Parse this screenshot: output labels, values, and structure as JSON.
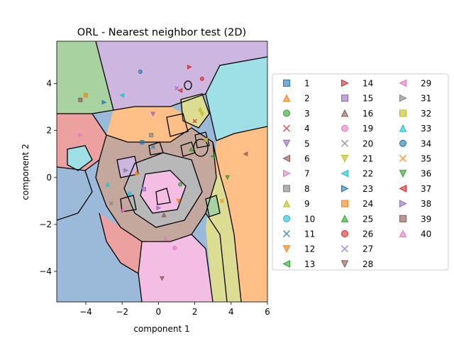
{
  "chart_data": {
    "type": "scatter",
    "title": "ORL - Nearest neighbor test (2D)",
    "xlabel": "component 1",
    "ylabel": "component 2",
    "xlim": [
      -5.6,
      6.0
    ],
    "ylim": [
      -5.3,
      5.8
    ],
    "xticks": [
      "−4",
      "−2",
      "0",
      "2",
      "4",
      "6"
    ],
    "xtick_values": [
      -4,
      -2,
      0,
      2,
      4,
      6
    ],
    "yticks": [
      "−4",
      "−2",
      "0",
      "2",
      "4"
    ],
    "ytick_values": [
      -4,
      -2,
      0,
      2,
      4
    ],
    "grid": false,
    "legend_position": "right",
    "legend_columns": 3,
    "background": "decision regions of a nearest-neighbor classifier, colored by class, with black boundaries",
    "series": [
      {
        "name": "1",
        "marker": "square",
        "color": "#1f77b4",
        "points": [
          [
            -0.9,
            1.5
          ]
        ]
      },
      {
        "name": "2",
        "marker": "triangle-up",
        "color": "#ff7f0e",
        "points": [
          [
            -1.2,
            0.2
          ]
        ]
      },
      {
        "name": "3",
        "marker": "circle",
        "color": "#2ca02c",
        "points": [
          [
            1.2,
            -0.3
          ]
        ]
      },
      {
        "name": "4",
        "marker": "x",
        "color": "#d62728",
        "points": [
          [
            2.0,
            2.4
          ]
        ]
      },
      {
        "name": "5",
        "marker": "triangle-down",
        "color": "#9467bd",
        "points": [
          [
            -0.3,
            2.7
          ]
        ]
      },
      {
        "name": "6",
        "marker": "triangle-left",
        "color": "#8c564b",
        "points": [
          [
            4.8,
            1.0
          ]
        ]
      },
      {
        "name": "7",
        "marker": "triangle-right",
        "color": "#e377c2",
        "points": [
          [
            -4.3,
            1.8
          ]
        ]
      },
      {
        "name": "8",
        "marker": "square",
        "color": "#7f7f7f",
        "points": [
          [
            -0.4,
            1.8
          ]
        ]
      },
      {
        "name": "9",
        "marker": "triangle-up",
        "color": "#bcbd22",
        "points": [
          [
            2.3,
            2.9
          ]
        ]
      },
      {
        "name": "10",
        "marker": "circle",
        "color": "#17becf",
        "points": [
          [
            -1.6,
            -0.7
          ]
        ]
      },
      {
        "name": "11",
        "marker": "x",
        "color": "#1f77b4",
        "points": [
          [
            -0.3,
            1.3
          ]
        ]
      },
      {
        "name": "12",
        "marker": "triangle-down",
        "color": "#ff7f0e",
        "points": [
          [
            1.1,
            -1.0
          ]
        ]
      },
      {
        "name": "13",
        "marker": "triangle-left",
        "color": "#2ca02c",
        "points": [
          [
            3.0,
            0.9
          ]
        ]
      },
      {
        "name": "14",
        "marker": "triangle-right",
        "color": "#d62728",
        "points": [
          [
            1.7,
            4.7
          ]
        ]
      },
      {
        "name": "15",
        "marker": "square",
        "color": "#9467bd",
        "points": [
          [
            -0.8,
            -0.5
          ]
        ]
      },
      {
        "name": "16",
        "marker": "triangle-up",
        "color": "#8c564b",
        "points": [
          [
            0.3,
            -1.6
          ]
        ]
      },
      {
        "name": "19",
        "marker": "circle",
        "color": "#e377c2",
        "points": [
          [
            0.9,
            -3.0
          ]
        ]
      },
      {
        "name": "20",
        "marker": "x",
        "color": "#7f7f7f",
        "points": [
          [
            -2.6,
            -1.1
          ]
        ]
      },
      {
        "name": "21",
        "marker": "triangle-down",
        "color": "#bcbd22",
        "points": [
          [
            2.4,
            2.7
          ]
        ]
      },
      {
        "name": "22",
        "marker": "triangle-left",
        "color": "#17becf",
        "points": [
          [
            -2.0,
            3.5
          ]
        ]
      },
      {
        "name": "23",
        "marker": "triangle-right",
        "color": "#1f77b4",
        "points": [
          [
            -3.0,
            3.2
          ]
        ]
      },
      {
        "name": "24",
        "marker": "square",
        "color": "#ff7f0e",
        "points": [
          [
            -4.0,
            3.5
          ]
        ]
      },
      {
        "name": "25",
        "marker": "triangle-up",
        "color": "#2ca02c",
        "points": [
          [
            1.8,
            1.2
          ]
        ]
      },
      {
        "name": "26",
        "marker": "circle",
        "color": "#d62728",
        "points": [
          [
            2.4,
            4.2
          ]
        ]
      },
      {
        "name": "27",
        "marker": "x",
        "color": "#9467bd",
        "points": [
          [
            1.0,
            3.8
          ]
        ]
      },
      {
        "name": "28",
        "marker": "triangle-down",
        "color": "#8c564b",
        "points": [
          [
            0.2,
            -4.3
          ]
        ]
      },
      {
        "name": "29",
        "marker": "triangle-left",
        "color": "#e377c2",
        "points": [
          [
            -2.0,
            -1.4
          ]
        ]
      },
      {
        "name": "31",
        "marker": "triangle-right",
        "color": "#7f7f7f",
        "points": [
          [
            -1.8,
            0.3
          ]
        ]
      },
      {
        "name": "32",
        "marker": "square",
        "color": "#bcbd22",
        "points": [
          [
            2.6,
            1.6
          ]
        ]
      },
      {
        "name": "33",
        "marker": "triangle-up",
        "color": "#17becf",
        "points": [
          [
            -2.8,
            -0.3
          ]
        ]
      },
      {
        "name": "34",
        "marker": "circle",
        "color": "#1f77b4",
        "points": [
          [
            -1.0,
            4.5
          ]
        ]
      },
      {
        "name": "35",
        "marker": "x",
        "color": "#ff7f0e",
        "points": [
          [
            3.5,
            -1.0
          ]
        ]
      },
      {
        "name": "36",
        "marker": "triangle-down",
        "color": "#2ca02c",
        "points": [
          [
            3.8,
            0.0
          ]
        ]
      },
      {
        "name": "37",
        "marker": "triangle-left",
        "color": "#d62728",
        "points": [
          [
            1.2,
            3.7
          ]
        ]
      },
      {
        "name": "38",
        "marker": "triangle-right",
        "color": "#9467bd",
        "points": [
          [
            0.0,
            -1.3
          ]
        ]
      },
      {
        "name": "39",
        "marker": "square",
        "color": "#8c564b",
        "points": [
          [
            -4.3,
            3.3
          ]
        ]
      },
      {
        "name": "40",
        "marker": "triangle-up",
        "color": "#e377c2",
        "points": [
          [
            0.4,
            -2.6
          ]
        ]
      }
    ]
  }
}
